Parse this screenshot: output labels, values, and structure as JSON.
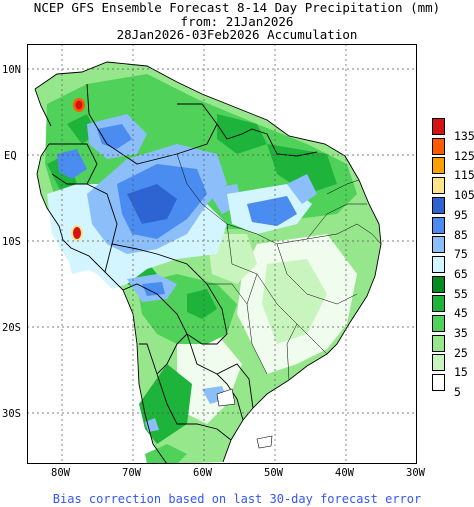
{
  "title": {
    "line1": "NCEP GFS Ensemble Forecast 8-14 Day Precipitation (mm)",
    "line2": "from: 21Jan2026",
    "line3": "28Jan2026-03Feb2026 Accumulation"
  },
  "axes": {
    "lat_labels": [
      "10N",
      "EQ",
      "10S",
      "20S",
      "30S"
    ],
    "lon_labels": [
      "80W",
      "70W",
      "60W",
      "50W",
      "40W",
      "30W"
    ],
    "lon_range": [
      -85,
      -30
    ],
    "lat_range": [
      -36,
      13
    ],
    "grid": true
  },
  "legend": {
    "levels": [
      {
        "label": "135",
        "color": "#d21414"
      },
      {
        "label": "125",
        "color": "#ff5a00"
      },
      {
        "label": "115",
        "color": "#ffa000"
      },
      {
        "label": "105",
        "color": "#ffe48c"
      },
      {
        "label": "95",
        "color": "#2d64d2"
      },
      {
        "label": "85",
        "color": "#4b8cf0"
      },
      {
        "label": "75",
        "color": "#8cbefa"
      },
      {
        "label": "65",
        "color": "#d2f5ff"
      },
      {
        "label": "55",
        "color": "#008c1e"
      },
      {
        "label": "45",
        "color": "#1eb43c"
      },
      {
        "label": "35",
        "color": "#50d25a"
      },
      {
        "label": "25",
        "color": "#96e68c"
      },
      {
        "label": "15",
        "color": "#c8f5be"
      },
      {
        "label": "5",
        "color": "#ffffff"
      }
    ]
  },
  "footer": "Bias correction based on last 30-day forecast error"
}
